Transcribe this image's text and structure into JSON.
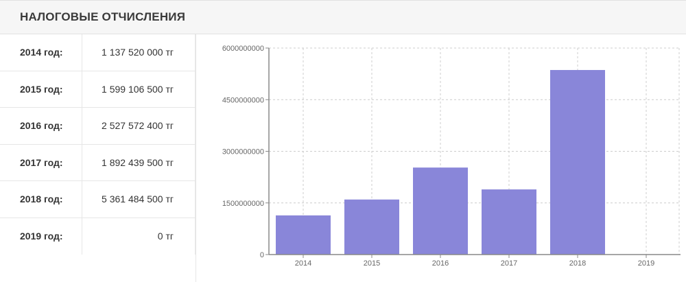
{
  "header": {
    "title": "НАЛОГОВЫЕ ОТЧИСЛЕНИЯ"
  },
  "table": {
    "rows": [
      {
        "year": "2014 год:",
        "amount": "1 137 520 000 тг"
      },
      {
        "year": "2015 год:",
        "amount": "1 599 106 500 тг"
      },
      {
        "year": "2016 год:",
        "amount": "2 527 572 400 тг"
      },
      {
        "year": "2017 год:",
        "amount": "1 892 439 500 тг"
      },
      {
        "year": "2018 год:",
        "amount": "5 361 484 500 тг"
      },
      {
        "year": "2019 год:",
        "amount": "0 тг"
      }
    ]
  },
  "chart_data": {
    "type": "bar",
    "categories": [
      "2014",
      "2015",
      "2016",
      "2017",
      "2018",
      "2019"
    ],
    "values": [
      1137520000,
      1599106500,
      2527572400,
      1892439500,
      5361484500,
      0
    ],
    "ylim": [
      0,
      6000000000
    ],
    "yticks": [
      "0",
      "1500000000",
      "3000000000",
      "4500000000",
      "6000000000"
    ],
    "grid": true,
    "color": "#8986d9"
  }
}
